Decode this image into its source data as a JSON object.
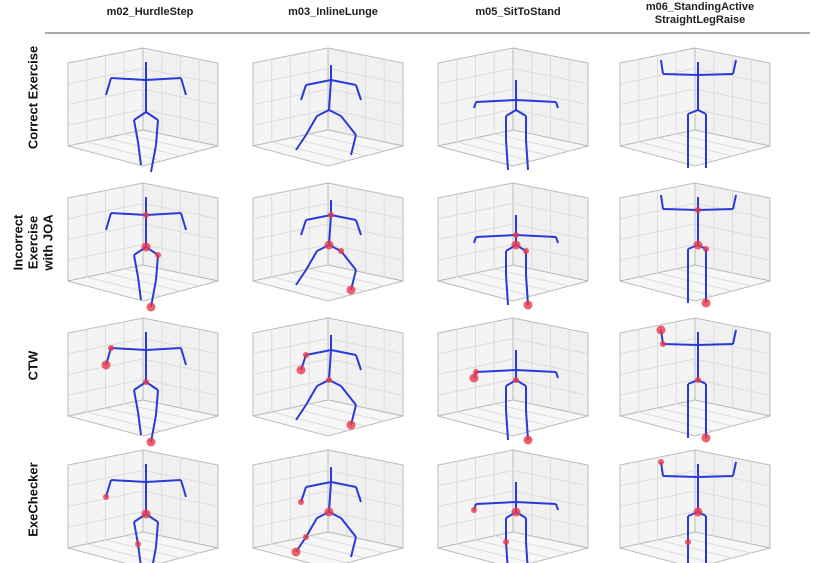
{
  "columns": [
    "m02_HurdleStep",
    "m03_InlineLunge",
    "m05_SitToStand",
    "m06_StandingActive StraightLegRaise"
  ],
  "rows": [
    "Correct Exercise",
    "Incorrect Exercise with JOA",
    "CTW",
    "ExeChecker"
  ]
}
